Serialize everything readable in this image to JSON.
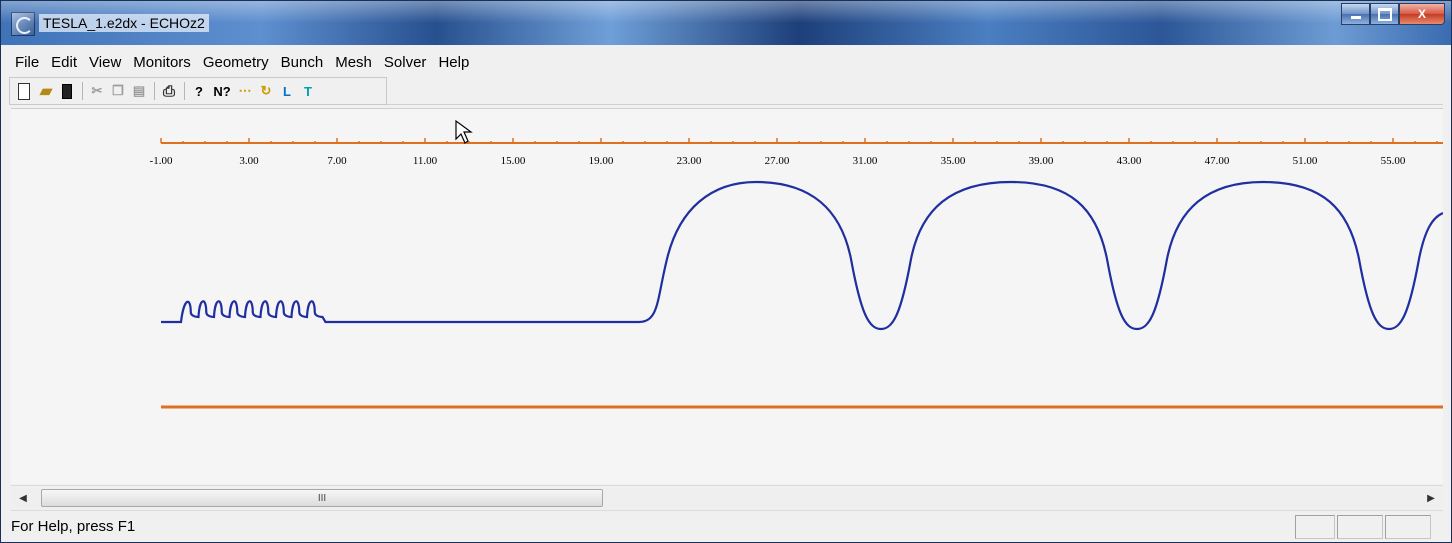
{
  "window": {
    "title": "TESLA_1.e2dx - ECHOz2",
    "buttons": {
      "minimize": "minimize",
      "maximize": "maximize",
      "close": "X"
    }
  },
  "menu": [
    "File",
    "Edit",
    "View",
    "Monitors",
    "Geometry",
    "Bunch",
    "Mesh",
    "Solver",
    "Help"
  ],
  "toolbar": {
    "icons": [
      "new-file-icon",
      "open-folder-icon",
      "save-disk-icon",
      "cut-icon",
      "copy-icon",
      "paste-icon",
      "print-icon",
      "about-icon",
      "context-help-icon",
      "dotted-line-icon",
      "refresh-icon",
      "l-shape-icon",
      "t-shape-icon"
    ],
    "glyphs": {
      "help": "?",
      "context_help": "N?",
      "dots": "⋯",
      "refresh": "↻",
      "l_shape": "L",
      "t_shape": "T"
    }
  },
  "axis": {
    "ticks": [
      "-1.00",
      "3.00",
      "7.00",
      "11.00",
      "15.00",
      "19.00",
      "23.00",
      "27.00",
      "31.00",
      "35.00",
      "39.00",
      "43.00",
      "47.00",
      "51.00",
      "55.00"
    ],
    "color": "#e07020"
  },
  "plot": {
    "profile_color": "#1f2fa0",
    "axis_line_color": "#e07020"
  },
  "scrollbar": {
    "thumb_grip": "III"
  },
  "status": {
    "text": "For Help, press F1"
  }
}
